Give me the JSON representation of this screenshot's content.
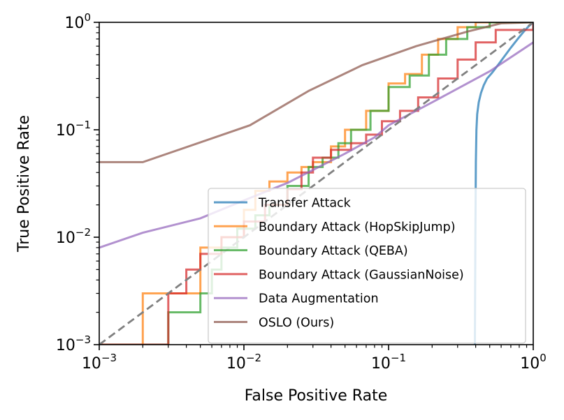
{
  "chart_data": {
    "type": "line",
    "xscale": "log",
    "yscale": "log",
    "xlabel": "False Positive Rate",
    "ylabel": "True Positive Rate",
    "xlim": [
      0.001,
      1
    ],
    "ylim": [
      0.001,
      1
    ],
    "xticks": [
      {
        "value": 0.001,
        "base": "10",
        "exp": "−3"
      },
      {
        "value": 0.01,
        "base": "10",
        "exp": "−2"
      },
      {
        "value": 0.1,
        "base": "10",
        "exp": "−1"
      },
      {
        "value": 1,
        "base": "10",
        "exp": "0"
      }
    ],
    "yticks": [
      {
        "value": 0.001,
        "base": "10",
        "exp": "−3"
      },
      {
        "value": 0.01,
        "base": "10",
        "exp": "−2"
      },
      {
        "value": 0.1,
        "base": "10",
        "exp": "−1"
      },
      {
        "value": 1,
        "base": "10",
        "exp": "0"
      }
    ],
    "legend_position": "lower-right",
    "reference_line": {
      "name": "chance",
      "color": "#808080",
      "x": [
        0.001,
        1
      ],
      "y": [
        0.001,
        1
      ]
    },
    "series": [
      {
        "name": "Transfer Attack",
        "color": "#1f77b4",
        "step": false,
        "x": [
          0.395,
          0.398,
          0.401,
          0.405,
          0.41,
          0.42,
          0.435,
          0.455,
          0.48,
          0.52,
          0.57,
          0.63,
          0.7,
          0.78,
          0.86,
          0.93,
          1.0
        ],
        "y": [
          0.001,
          0.01,
          0.05,
          0.1,
          0.14,
          0.18,
          0.22,
          0.26,
          0.3,
          0.34,
          0.4,
          0.48,
          0.58,
          0.7,
          0.82,
          0.92,
          1.0
        ]
      },
      {
        "name": "Boundary Attack (HopSkipJump)",
        "color": "#ff7f0e",
        "step": true,
        "x": [
          0.001,
          0.002,
          0.002,
          0.003,
          0.005,
          0.007,
          0.01,
          0.012,
          0.015,
          0.02,
          0.025,
          0.03,
          0.04,
          0.05,
          0.07,
          0.1,
          0.13,
          0.17,
          0.22,
          0.3,
          0.4,
          1.0
        ],
        "y": [
          0.001,
          0.001,
          0.003,
          0.003,
          0.008,
          0.01,
          0.018,
          0.027,
          0.033,
          0.04,
          0.045,
          0.05,
          0.07,
          0.1,
          0.15,
          0.27,
          0.33,
          0.5,
          0.7,
          0.9,
          1.0,
          1.0
        ]
      },
      {
        "name": "Boundary Attack (QEBA)",
        "color": "#2ca02c",
        "step": true,
        "x": [
          0.001,
          0.003,
          0.003,
          0.005,
          0.006,
          0.007,
          0.009,
          0.012,
          0.015,
          0.02,
          0.028,
          0.035,
          0.045,
          0.055,
          0.075,
          0.1,
          0.14,
          0.19,
          0.25,
          0.35,
          0.5,
          1.0
        ],
        "y": [
          0.001,
          0.001,
          0.002,
          0.003,
          0.005,
          0.008,
          0.012,
          0.016,
          0.02,
          0.03,
          0.045,
          0.055,
          0.075,
          0.1,
          0.15,
          0.25,
          0.32,
          0.5,
          0.7,
          0.9,
          1.0,
          1.0
        ]
      },
      {
        "name": "Boundary Attack (GaussianNoise)",
        "color": "#d62728",
        "step": true,
        "x": [
          0.001,
          0.003,
          0.003,
          0.004,
          0.005,
          0.007,
          0.01,
          0.014,
          0.02,
          0.025,
          0.03,
          0.04,
          0.055,
          0.07,
          0.09,
          0.12,
          0.16,
          0.22,
          0.3,
          0.4,
          0.55,
          1.0
        ],
        "y": [
          0.001,
          0.001,
          0.003,
          0.005,
          0.007,
          0.01,
          0.014,
          0.02,
          0.028,
          0.04,
          0.055,
          0.065,
          0.075,
          0.09,
          0.12,
          0.15,
          0.2,
          0.3,
          0.45,
          0.65,
          0.85,
          1.0
        ]
      },
      {
        "name": "Data Augmentation",
        "color": "#9467bd",
        "step": false,
        "x": [
          0.001,
          0.002,
          0.005,
          0.01,
          0.02,
          0.05,
          0.08,
          0.1,
          0.2,
          0.5,
          1.0
        ],
        "y": [
          0.008,
          0.011,
          0.015,
          0.022,
          0.032,
          0.06,
          0.085,
          0.11,
          0.18,
          0.35,
          0.65
        ]
      },
      {
        "name": "OSLO (Ours)",
        "color": "#8c564b",
        "step": false,
        "x": [
          0.001,
          0.002,
          0.011,
          0.028,
          0.066,
          0.155,
          0.35,
          0.6,
          1.0
        ],
        "y": [
          0.05,
          0.05,
          0.11,
          0.23,
          0.4,
          0.6,
          0.82,
          0.98,
          1.0
        ]
      }
    ]
  }
}
